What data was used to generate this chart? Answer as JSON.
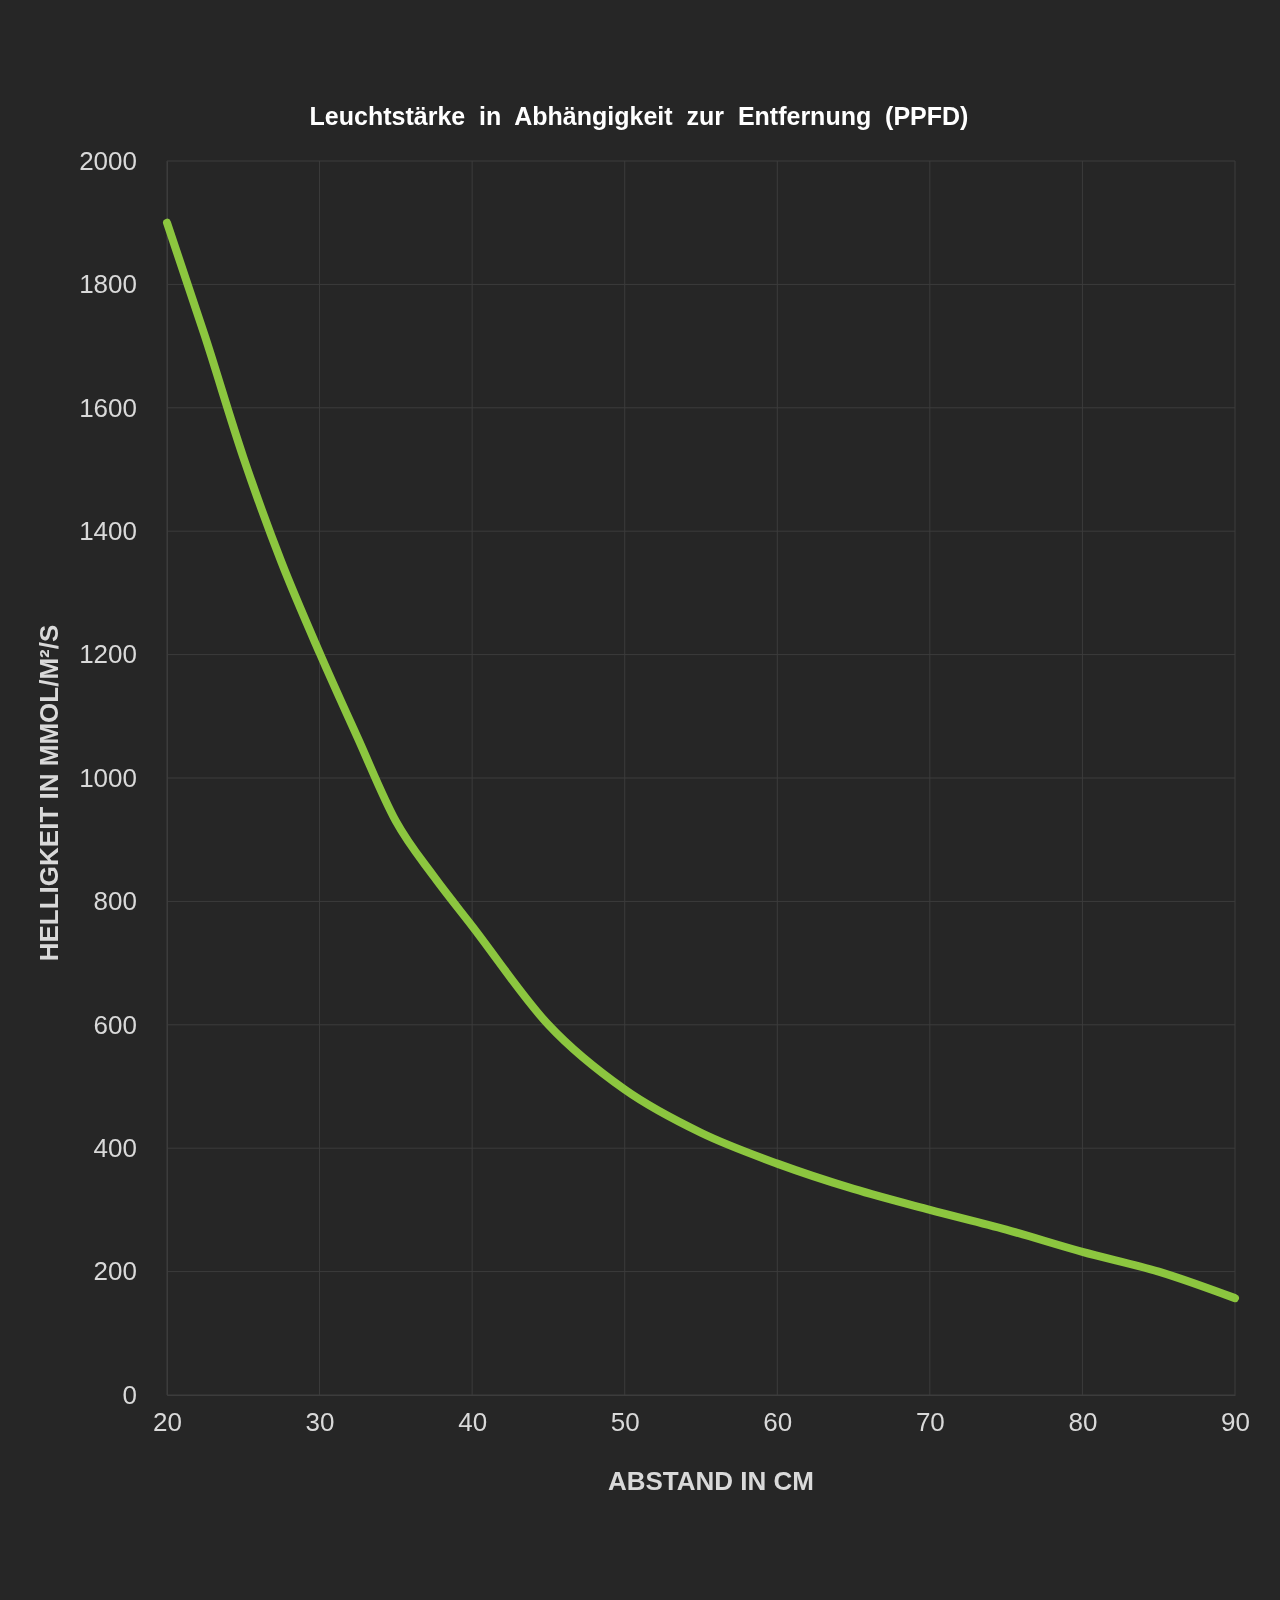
{
  "chart_data": {
    "type": "line",
    "title": "Leuchtstärke  in  Abhängigkeit  zur  Entfernung  (PPFD)",
    "xlabel": "ABSTAND IN CM",
    "ylabel": "HELLIGKEIT IN MMOL/M²/S",
    "x": [
      20,
      22.5,
      25,
      27.5,
      30,
      32.5,
      35,
      37.5,
      40,
      45,
      50,
      55,
      60,
      65,
      70,
      75,
      80,
      85,
      90
    ],
    "series": [
      {
        "color": "#8cc63f",
        "values": [
          1900,
          1715,
          1520,
          1350,
          1203,
          1065,
          930,
          840,
          760,
          600,
          495,
          425,
          375,
          334,
          300,
          268,
          232,
          200,
          157
        ]
      }
    ],
    "xlim": [
      20,
      90
    ],
    "xticks": [
      20,
      30,
      40,
      50,
      60,
      70,
      80,
      90
    ],
    "ylim": [
      0,
      2000
    ],
    "yticks": [
      0,
      200,
      400,
      600,
      800,
      1000,
      1200,
      1400,
      1600,
      1800,
      2000
    ],
    "grid": true,
    "marker": "none",
    "line_style": "solid"
  }
}
